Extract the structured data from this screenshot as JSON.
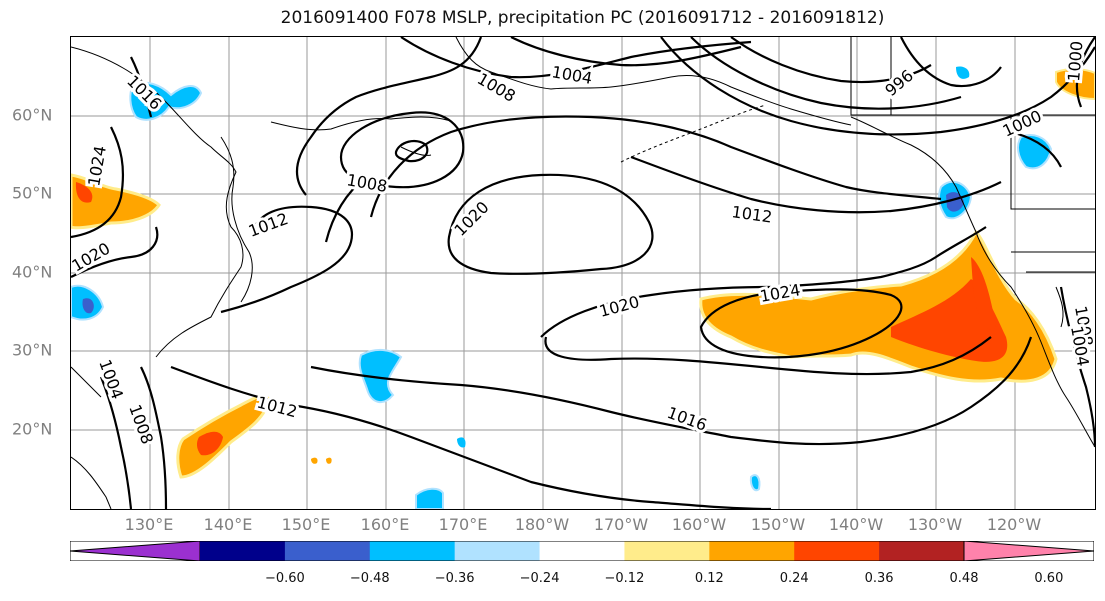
{
  "title": "2016091400 F078 MSLP, precipitation PC (2016091712 - 2016091812)",
  "lat_labels": [
    "60°N",
    "50°N",
    "40°N",
    "30°N",
    "20°N"
  ],
  "lon_labels": [
    "130°E",
    "140°E",
    "150°E",
    "160°E",
    "170°E",
    "180°W",
    "170°W",
    "160°W",
    "150°W",
    "140°W",
    "130°W",
    "120°W"
  ],
  "isobar_labels": [
    "1016",
    "1024",
    "1020",
    "1008",
    "1004",
    "1008",
    "1012",
    "1008",
    "1020",
    "1012",
    "1020",
    "1024",
    "1004",
    "996",
    "1000",
    "1000",
    "1012",
    "1016",
    "1008",
    "1004"
  ],
  "colorbar": {
    "colors": [
      "#9b30d0",
      "#00008b",
      "#3a5fcd",
      "#00bfff",
      "#b0e2ff",
      "#ffffff",
      "#ffec8b",
      "#ffa500",
      "#ff4500",
      "#b22222",
      "#ff82ab"
    ],
    "ticks": [
      "−0.60",
      "−0.48",
      "−0.36",
      "−0.24",
      "−0.12",
      "0.12",
      "0.24",
      "0.36",
      "0.48",
      "0.60"
    ]
  }
}
